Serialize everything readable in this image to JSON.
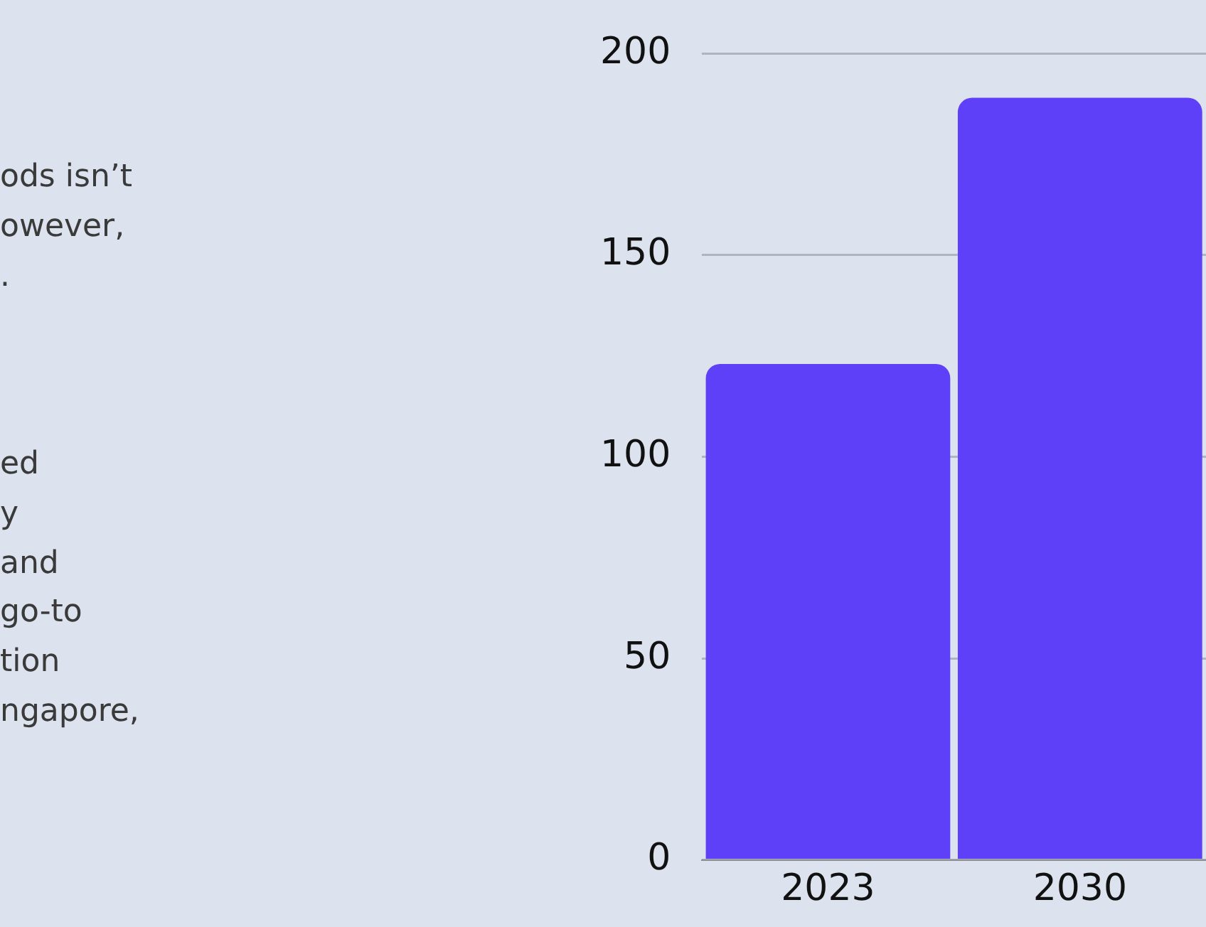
{
  "chart_data": {
    "type": "bar",
    "categories": [
      "2023",
      "2030"
    ],
    "values": [
      123,
      189
    ],
    "color": "#5f40f9",
    "ylim": [
      0,
      200
    ],
    "yticks": [
      0,
      50,
      100,
      150,
      200
    ],
    "grid": "y",
    "annotations": [
      "ods isn’t\nowever,\n.",
      "ed\ny\nand\ngo-to\ntion\nngapore,"
    ]
  }
}
